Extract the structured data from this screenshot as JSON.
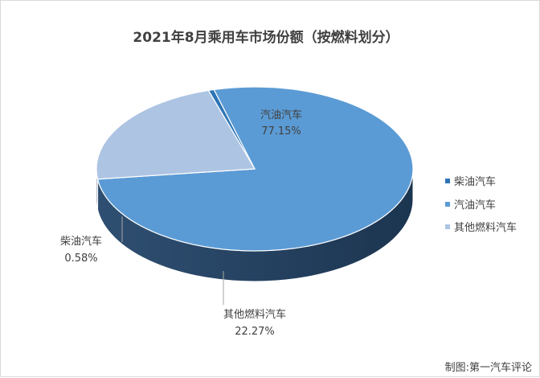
{
  "chart_data": {
    "type": "pie",
    "title": "2021年8月乘用车市场份额（按燃料划分）",
    "slices": [
      {
        "name": "柴油汽车",
        "value": 0.58,
        "label": "0.58%",
        "color": "#2e75b6"
      },
      {
        "name": "汽油汽车",
        "value": 77.15,
        "label": "77.15%",
        "color": "#5b9bd5"
      },
      {
        "name": "其他燃料汽车",
        "value": 22.27,
        "label": "22.27%",
        "color": "#adc4e3"
      }
    ],
    "legend": {
      "position": "right",
      "items": [
        "柴油汽车",
        "汽油汽车",
        "其他燃料汽车"
      ]
    },
    "style": "3d-pie"
  },
  "source_note": "制图:第一汽车评论"
}
